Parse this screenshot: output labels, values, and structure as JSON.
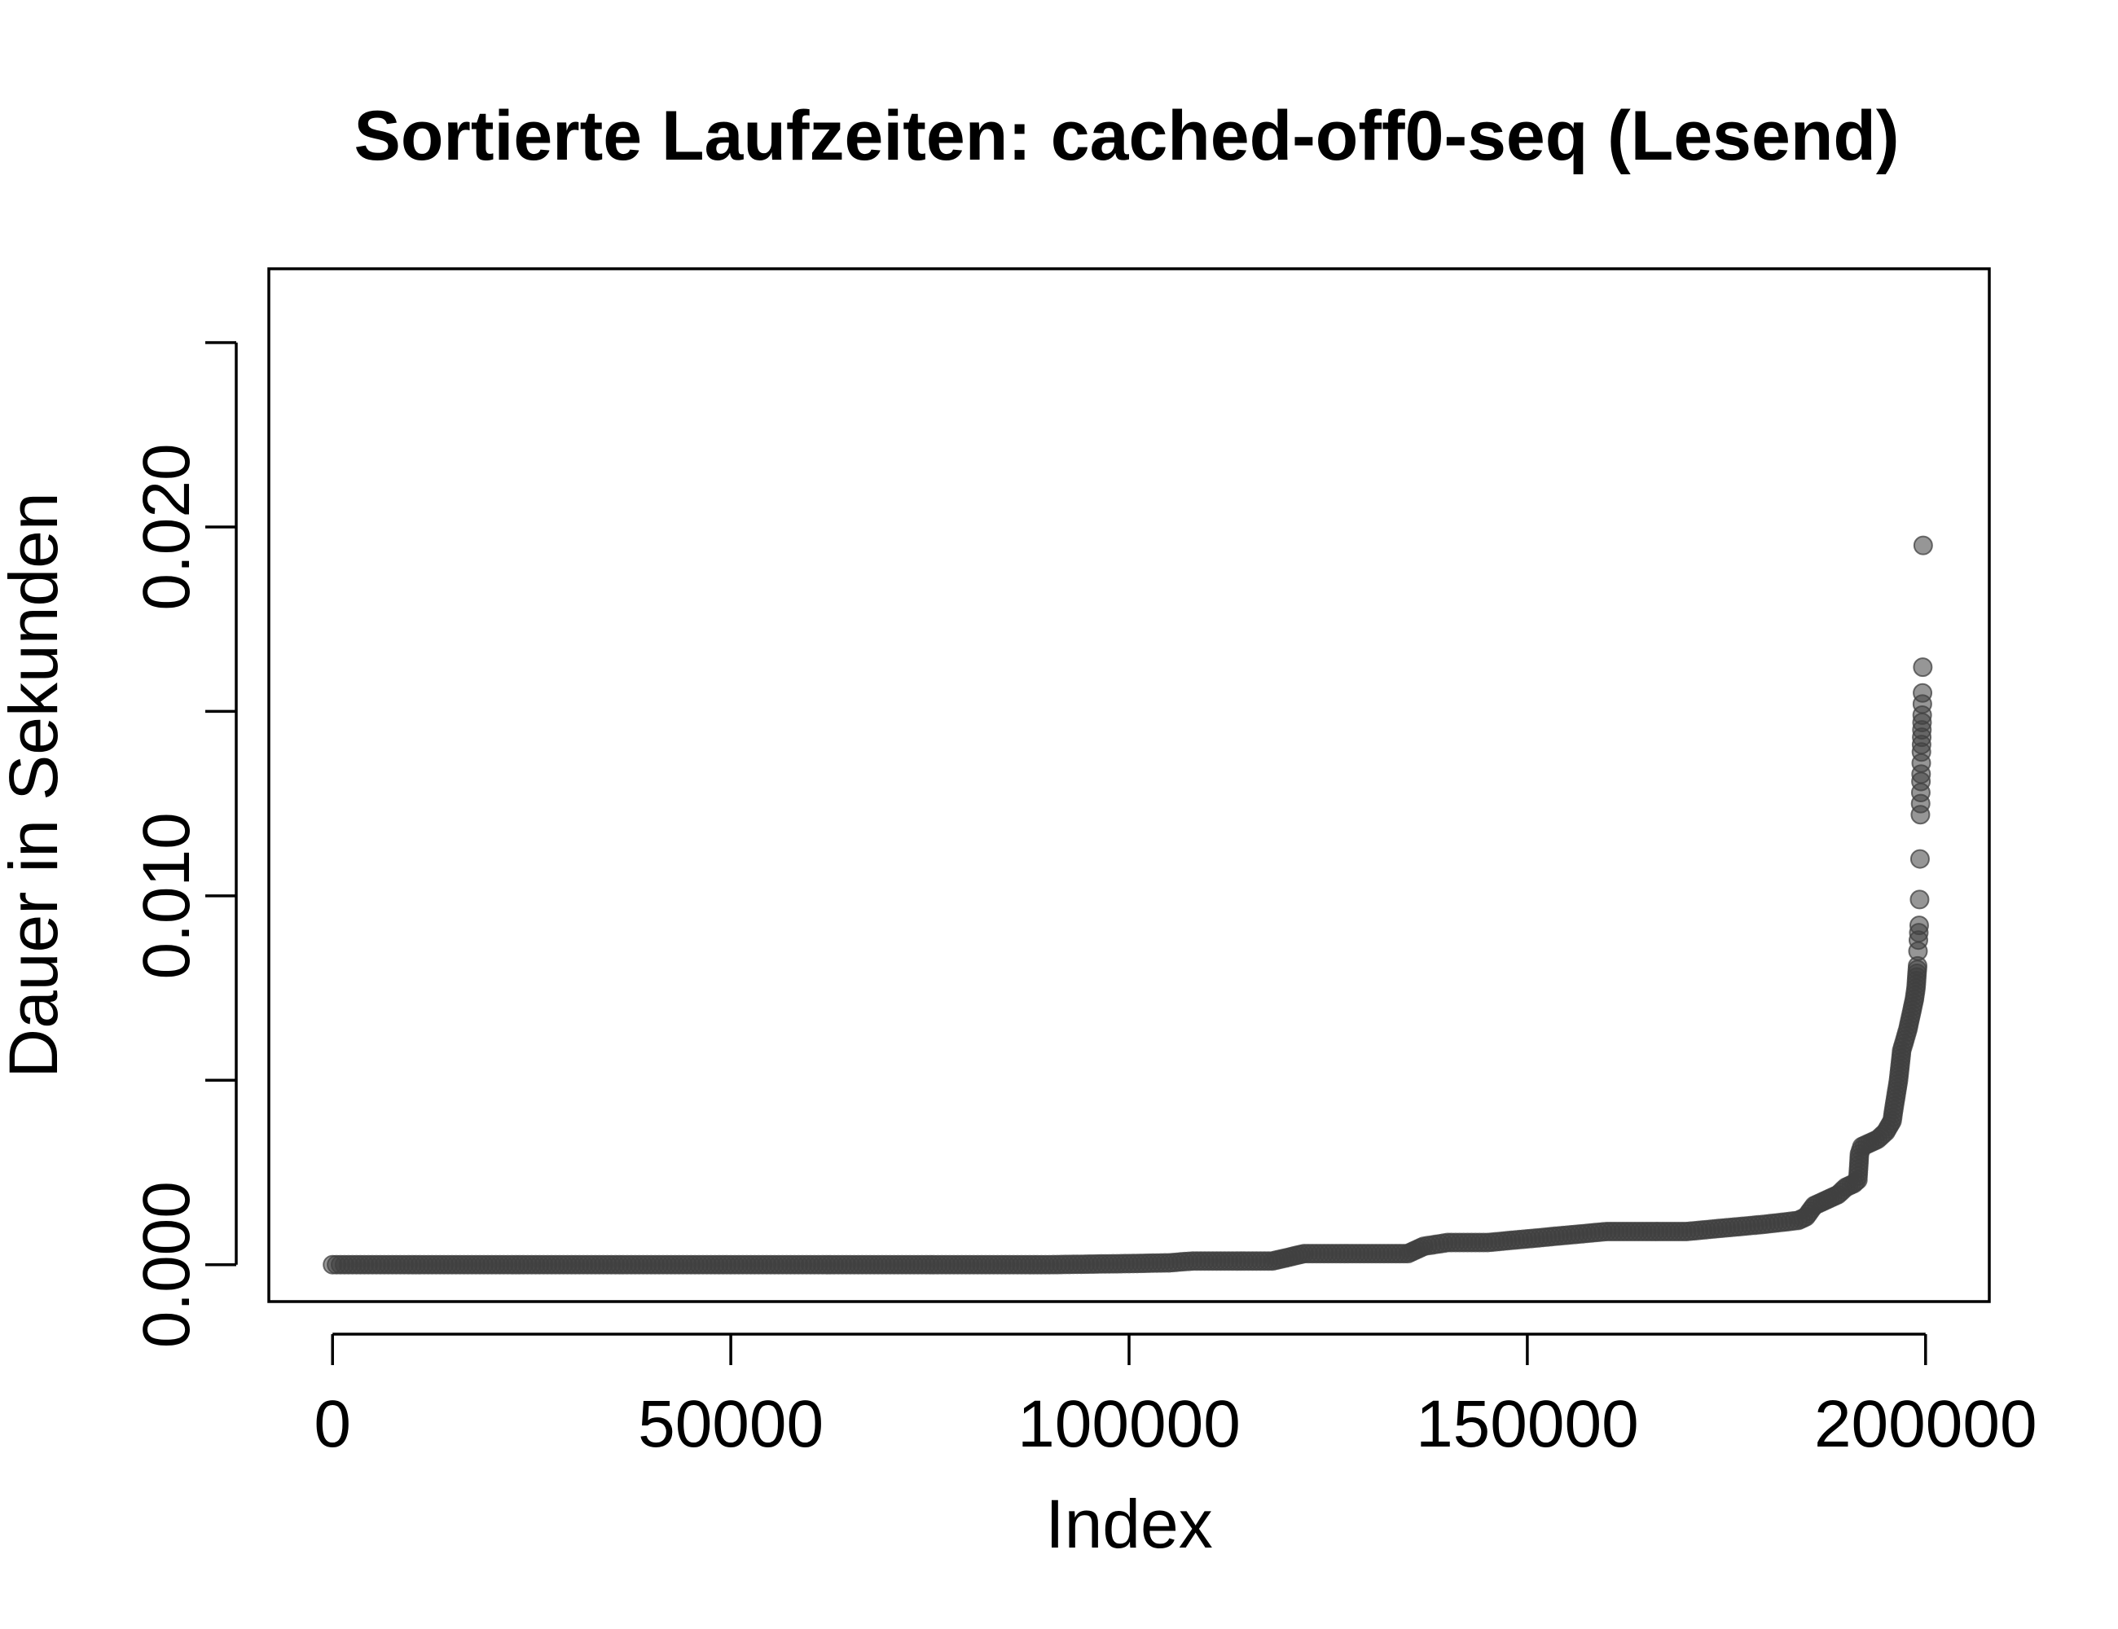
{
  "chart_data": {
    "type": "scatter",
    "title": "Sortierte Laufzeiten: cached-off0-seq (Lesend)",
    "xlabel": "Index",
    "ylabel": "Dauer in Sekunden",
    "xlim": [
      -8000,
      208000
    ],
    "ylim": [
      -0.001,
      0.027
    ],
    "x_ticks": [
      0,
      50000,
      100000,
      150000,
      200000
    ],
    "x_tick_labels": [
      "0",
      "50000",
      "100000",
      "150000",
      "200000"
    ],
    "y_ticks": [
      0.0,
      0.005,
      0.01,
      0.015,
      0.02,
      0.025
    ],
    "y_tick_labels": [
      "0.000",
      "",
      "0.010",
      "",
      "0.020",
      ""
    ],
    "grid": false,
    "point_color": "#404040",
    "curve": [
      [
        0,
        0.0
      ],
      [
        20000,
        0.0
      ],
      [
        40000,
        0.0
      ],
      [
        60000,
        0.0
      ],
      [
        80000,
        0.0
      ],
      [
        90000,
        0.0
      ],
      [
        100000,
        3e-05
      ],
      [
        105000,
        5e-05
      ],
      [
        108000,
        0.0001
      ],
      [
        110000,
        0.0001
      ],
      [
        118000,
        0.0001
      ],
      [
        120000,
        0.0002
      ],
      [
        122000,
        0.0003
      ],
      [
        130000,
        0.0003
      ],
      [
        135000,
        0.0003
      ],
      [
        136000,
        0.0004
      ],
      [
        137000,
        0.0005
      ],
      [
        140000,
        0.0006
      ],
      [
        145000,
        0.0006
      ],
      [
        150000,
        0.0007
      ],
      [
        155000,
        0.0008
      ],
      [
        160000,
        0.0009
      ],
      [
        165000,
        0.0009
      ],
      [
        170000,
        0.0009
      ],
      [
        175000,
        0.001
      ],
      [
        180000,
        0.0011
      ],
      [
        184000,
        0.0012
      ],
      [
        185000,
        0.0013
      ],
      [
        186000,
        0.0016
      ],
      [
        187000,
        0.0017
      ],
      [
        188000,
        0.0018
      ],
      [
        189000,
        0.0019
      ],
      [
        190000,
        0.0021
      ],
      [
        191000,
        0.0022
      ],
      [
        191500,
        0.0023
      ],
      [
        191700,
        0.003
      ],
      [
        192000,
        0.0032
      ],
      [
        193000,
        0.0033
      ],
      [
        194000,
        0.0034
      ],
      [
        195000,
        0.0036
      ],
      [
        195800,
        0.0039
      ],
      [
        196000,
        0.0042
      ],
      [
        196300,
        0.0046
      ],
      [
        196600,
        0.005
      ],
      [
        196800,
        0.0054
      ],
      [
        197000,
        0.0058
      ],
      [
        197400,
        0.0061
      ],
      [
        197800,
        0.0064
      ],
      [
        198200,
        0.0068
      ],
      [
        198600,
        0.0072
      ],
      [
        198800,
        0.0075
      ],
      [
        198900,
        0.0078
      ],
      [
        199000,
        0.0081
      ]
    ],
    "tail_points": [
      [
        199050,
        0.0085
      ],
      [
        199100,
        0.0088
      ],
      [
        199150,
        0.009
      ],
      [
        199200,
        0.0092
      ],
      [
        199250,
        0.0099
      ],
      [
        199300,
        0.011
      ],
      [
        199350,
        0.0122
      ],
      [
        199380,
        0.0125
      ],
      [
        199400,
        0.0128
      ],
      [
        199420,
        0.0131
      ],
      [
        199440,
        0.0133
      ],
      [
        199460,
        0.0136
      ],
      [
        199480,
        0.0139
      ],
      [
        199500,
        0.0141
      ],
      [
        199520,
        0.0143
      ],
      [
        199540,
        0.0145
      ],
      [
        199560,
        0.0147
      ],
      [
        199580,
        0.0149
      ],
      [
        199600,
        0.0152
      ],
      [
        199620,
        0.0155
      ],
      [
        199650,
        0.0162
      ],
      [
        199700,
        0.0195
      ]
    ]
  }
}
